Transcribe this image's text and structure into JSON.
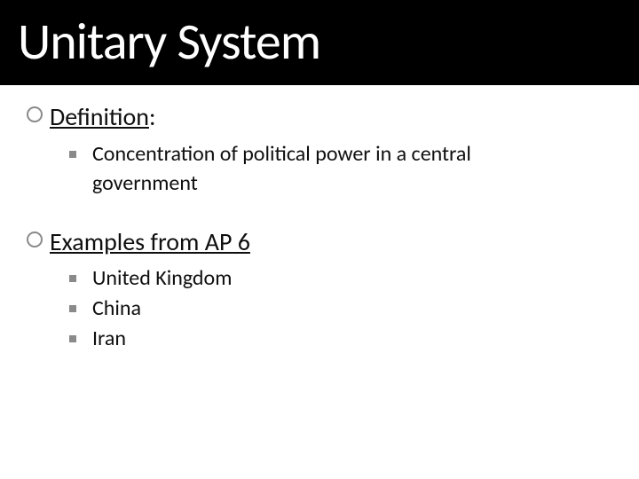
{
  "slide": {
    "title": "Unitary System",
    "title_bg": "#000000",
    "title_color": "#ffffff",
    "title_fontsize": 58,
    "body_color": "#0f0f0f",
    "bullet_circle_color": "#8a8a8a",
    "bullet_square_color": "#8a8a8a",
    "sections": [
      {
        "heading": "Definition",
        "heading_suffix": ":",
        "heading_fontsize": 28,
        "underline": true,
        "items": [
          "Concentration of political power in a central government"
        ]
      },
      {
        "heading": "Examples from AP 6",
        "heading_suffix": "",
        "heading_fontsize": 28,
        "underline": true,
        "items": [
          "United Kingdom",
          "China",
          "Iran"
        ]
      }
    ]
  }
}
